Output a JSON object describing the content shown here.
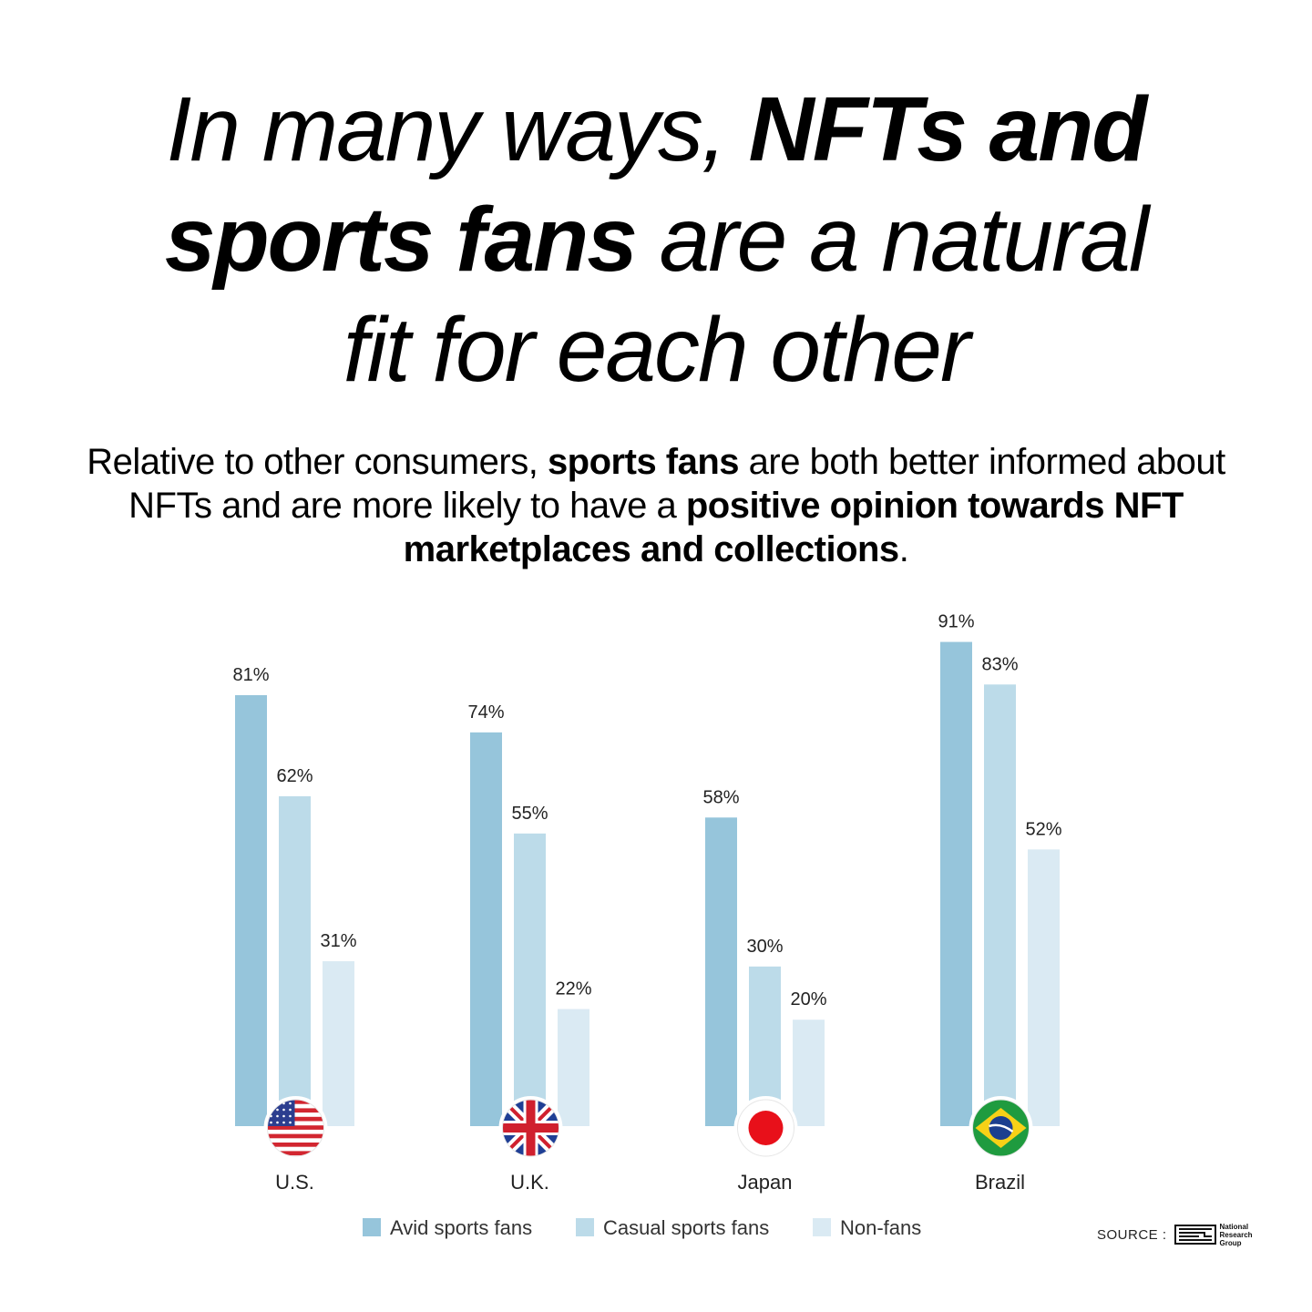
{
  "headline": {
    "line1_plain": "In many ways, ",
    "line1_bold": "NFTs and",
    "line2_bold": "sports fans",
    "line2_plain": " are a natural",
    "line3_plain": "fit for each other"
  },
  "subtitle": {
    "p1": "Relative to other consumers, ",
    "b1": "sports fans",
    "p2": " are both better informed about NFTs and are more likely to have a ",
    "b2": "positive opinion towards NFT marketplaces and collections",
    "p3": "."
  },
  "chart_data": {
    "type": "bar",
    "title": "",
    "xlabel": "",
    "ylabel": "",
    "ylim": [
      0,
      100
    ],
    "grid": false,
    "legend_position": "bottom",
    "categories": [
      "U.S.",
      "U.K.",
      "Japan",
      "Brazil"
    ],
    "category_icons": [
      "us-flag-icon",
      "uk-flag-icon",
      "japan-flag-icon",
      "brazil-flag-icon"
    ],
    "series": [
      {
        "name": "Avid sports fans",
        "color": "#96c5db",
        "values": [
          81,
          74,
          58,
          91
        ]
      },
      {
        "name": "Casual sports fans",
        "color": "#bcdbe9",
        "values": [
          62,
          55,
          30,
          83
        ]
      },
      {
        "name": "Non-fans",
        "color": "#daeaf3",
        "values": [
          31,
          22,
          20,
          52
        ]
      }
    ],
    "data_labels": [
      [
        "81%",
        "62%",
        "31%"
      ],
      [
        "74%",
        "55%",
        "22%"
      ],
      [
        "58%",
        "30%",
        "20%"
      ],
      [
        "91%",
        "83%",
        "52%"
      ]
    ]
  },
  "source": {
    "label": "SOURCE :",
    "logo_lines": [
      "National",
      "Research",
      "Group"
    ]
  }
}
